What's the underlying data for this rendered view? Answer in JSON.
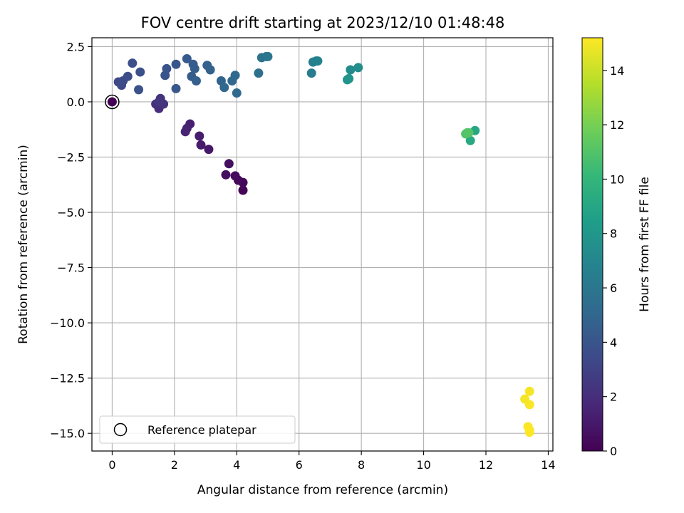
{
  "chart_data": {
    "type": "scatter",
    "title": "FOV centre drift starting at 2023/12/10 01:48:48",
    "xlabel": "Angular distance from reference (arcmin)",
    "ylabel": "Rotation from reference (arcmin)",
    "xlim": [
      -0.65,
      14.15
    ],
    "ylim": [
      -15.8,
      2.9
    ],
    "xticks": [
      0,
      2,
      4,
      6,
      8,
      10,
      12,
      14
    ],
    "yticks": [
      2.5,
      0.0,
      -2.5,
      -5.0,
      -7.5,
      -10.0,
      -12.5,
      -15.0
    ],
    "xtick_labels": [
      "0",
      "2",
      "4",
      "6",
      "8",
      "10",
      "12",
      "14"
    ],
    "ytick_labels": [
      "2.5",
      "0.0",
      "−2.5",
      "−5.0",
      "−7.5",
      "−10.0",
      "−12.5",
      "−15.0"
    ],
    "grid": true,
    "legend": {
      "label": "Reference platepar",
      "placement": "lower-left"
    },
    "reference_point": {
      "x": 0,
      "y": 0,
      "c": 0.0
    },
    "colorbar": {
      "label": "Hours from first FF file",
      "range": [
        0,
        15.2
      ],
      "ticks": [
        0,
        2,
        4,
        6,
        8,
        10,
        12,
        14
      ],
      "tick_labels": [
        "0",
        "2",
        "4",
        "6",
        "8",
        "10",
        "12",
        "14"
      ],
      "colormap": [
        "#440154",
        "#482878",
        "#3e4989",
        "#31688e",
        "#26828e",
        "#1f9e89",
        "#35b779",
        "#6ece58",
        "#b5de2b",
        "#fde725"
      ]
    },
    "points": [
      {
        "x": 0.0,
        "y": 0.0,
        "c": 0.0
      },
      {
        "x": 4.2,
        "y": -4.0,
        "c": 0.1
      },
      {
        "x": 4.2,
        "y": -3.65,
        "c": 0.2
      },
      {
        "x": 4.05,
        "y": -3.55,
        "c": 0.3
      },
      {
        "x": 3.95,
        "y": -3.35,
        "c": 0.4
      },
      {
        "x": 3.65,
        "y": -3.3,
        "c": 0.5
      },
      {
        "x": 3.75,
        "y": -2.8,
        "c": 0.6
      },
      {
        "x": 3.1,
        "y": -2.15,
        "c": 1.0
      },
      {
        "x": 2.85,
        "y": -1.95,
        "c": 1.1
      },
      {
        "x": 2.8,
        "y": -1.55,
        "c": 1.2
      },
      {
        "x": 2.5,
        "y": -1.0,
        "c": 1.3
      },
      {
        "x": 2.4,
        "y": -1.2,
        "c": 1.4
      },
      {
        "x": 2.35,
        "y": -1.35,
        "c": 1.5
      },
      {
        "x": 1.5,
        "y": -0.3,
        "c": 2.0
      },
      {
        "x": 1.4,
        "y": -0.1,
        "c": 2.1
      },
      {
        "x": 1.55,
        "y": 0.15,
        "c": 2.2
      },
      {
        "x": 1.65,
        "y": -0.1,
        "c": 2.3
      },
      {
        "x": 1.5,
        "y": 0.0,
        "c": 2.4
      },
      {
        "x": 0.2,
        "y": 0.9,
        "c": 3.3
      },
      {
        "x": 0.3,
        "y": 0.75,
        "c": 3.4
      },
      {
        "x": 0.35,
        "y": 0.95,
        "c": 3.5
      },
      {
        "x": 0.5,
        "y": 1.15,
        "c": 3.6
      },
      {
        "x": 0.65,
        "y": 1.75,
        "c": 3.7
      },
      {
        "x": 0.9,
        "y": 1.35,
        "c": 3.8
      },
      {
        "x": 0.85,
        "y": 0.55,
        "c": 3.8
      },
      {
        "x": 1.75,
        "y": 1.5,
        "c": 3.9
      },
      {
        "x": 1.7,
        "y": 1.2,
        "c": 4.0
      },
      {
        "x": 2.05,
        "y": 1.7,
        "c": 4.1
      },
      {
        "x": 2.05,
        "y": 0.6,
        "c": 4.2
      },
      {
        "x": 2.4,
        "y": 1.95,
        "c": 4.3
      },
      {
        "x": 2.55,
        "y": 1.15,
        "c": 4.4
      },
      {
        "x": 2.6,
        "y": 1.7,
        "c": 4.5
      },
      {
        "x": 2.65,
        "y": 1.5,
        "c": 4.5
      },
      {
        "x": 2.7,
        "y": 0.95,
        "c": 4.6
      },
      {
        "x": 3.05,
        "y": 1.65,
        "c": 4.7
      },
      {
        "x": 3.15,
        "y": 1.45,
        "c": 4.8
      },
      {
        "x": 3.5,
        "y": 0.95,
        "c": 4.9
      },
      {
        "x": 3.6,
        "y": 0.65,
        "c": 5.0
      },
      {
        "x": 3.85,
        "y": 0.95,
        "c": 5.1
      },
      {
        "x": 3.95,
        "y": 1.2,
        "c": 5.1
      },
      {
        "x": 4.0,
        "y": 0.4,
        "c": 5.2
      },
      {
        "x": 4.7,
        "y": 1.3,
        "c": 5.5
      },
      {
        "x": 4.8,
        "y": 2.0,
        "c": 5.7
      },
      {
        "x": 4.95,
        "y": 2.05,
        "c": 5.8
      },
      {
        "x": 5.0,
        "y": 2.05,
        "c": 5.9
      },
      {
        "x": 6.4,
        "y": 1.3,
        "c": 6.3
      },
      {
        "x": 6.45,
        "y": 1.8,
        "c": 6.5
      },
      {
        "x": 6.55,
        "y": 1.85,
        "c": 6.6
      },
      {
        "x": 6.6,
        "y": 1.85,
        "c": 6.7
      },
      {
        "x": 7.55,
        "y": 1.0,
        "c": 7.8
      },
      {
        "x": 7.6,
        "y": 1.05,
        "c": 7.9
      },
      {
        "x": 7.65,
        "y": 1.45,
        "c": 7.3
      },
      {
        "x": 7.9,
        "y": 1.55,
        "c": 7.4
      },
      {
        "x": 11.5,
        "y": -1.75,
        "c": 9.2
      },
      {
        "x": 11.65,
        "y": -1.3,
        "c": 9.0
      },
      {
        "x": 11.4,
        "y": -1.4,
        "c": 10.8
      },
      {
        "x": 11.35,
        "y": -1.45,
        "c": 11.0
      },
      {
        "x": 11.45,
        "y": -1.4,
        "c": 11.1
      },
      {
        "x": 13.4,
        "y": -13.1,
        "c": 15.0
      },
      {
        "x": 13.25,
        "y": -13.45,
        "c": 15.0
      },
      {
        "x": 13.4,
        "y": -13.7,
        "c": 15.1
      },
      {
        "x": 13.35,
        "y": -14.7,
        "c": 15.1
      },
      {
        "x": 13.4,
        "y": -14.85,
        "c": 15.2
      },
      {
        "x": 13.4,
        "y": -14.95,
        "c": 15.2
      }
    ]
  }
}
